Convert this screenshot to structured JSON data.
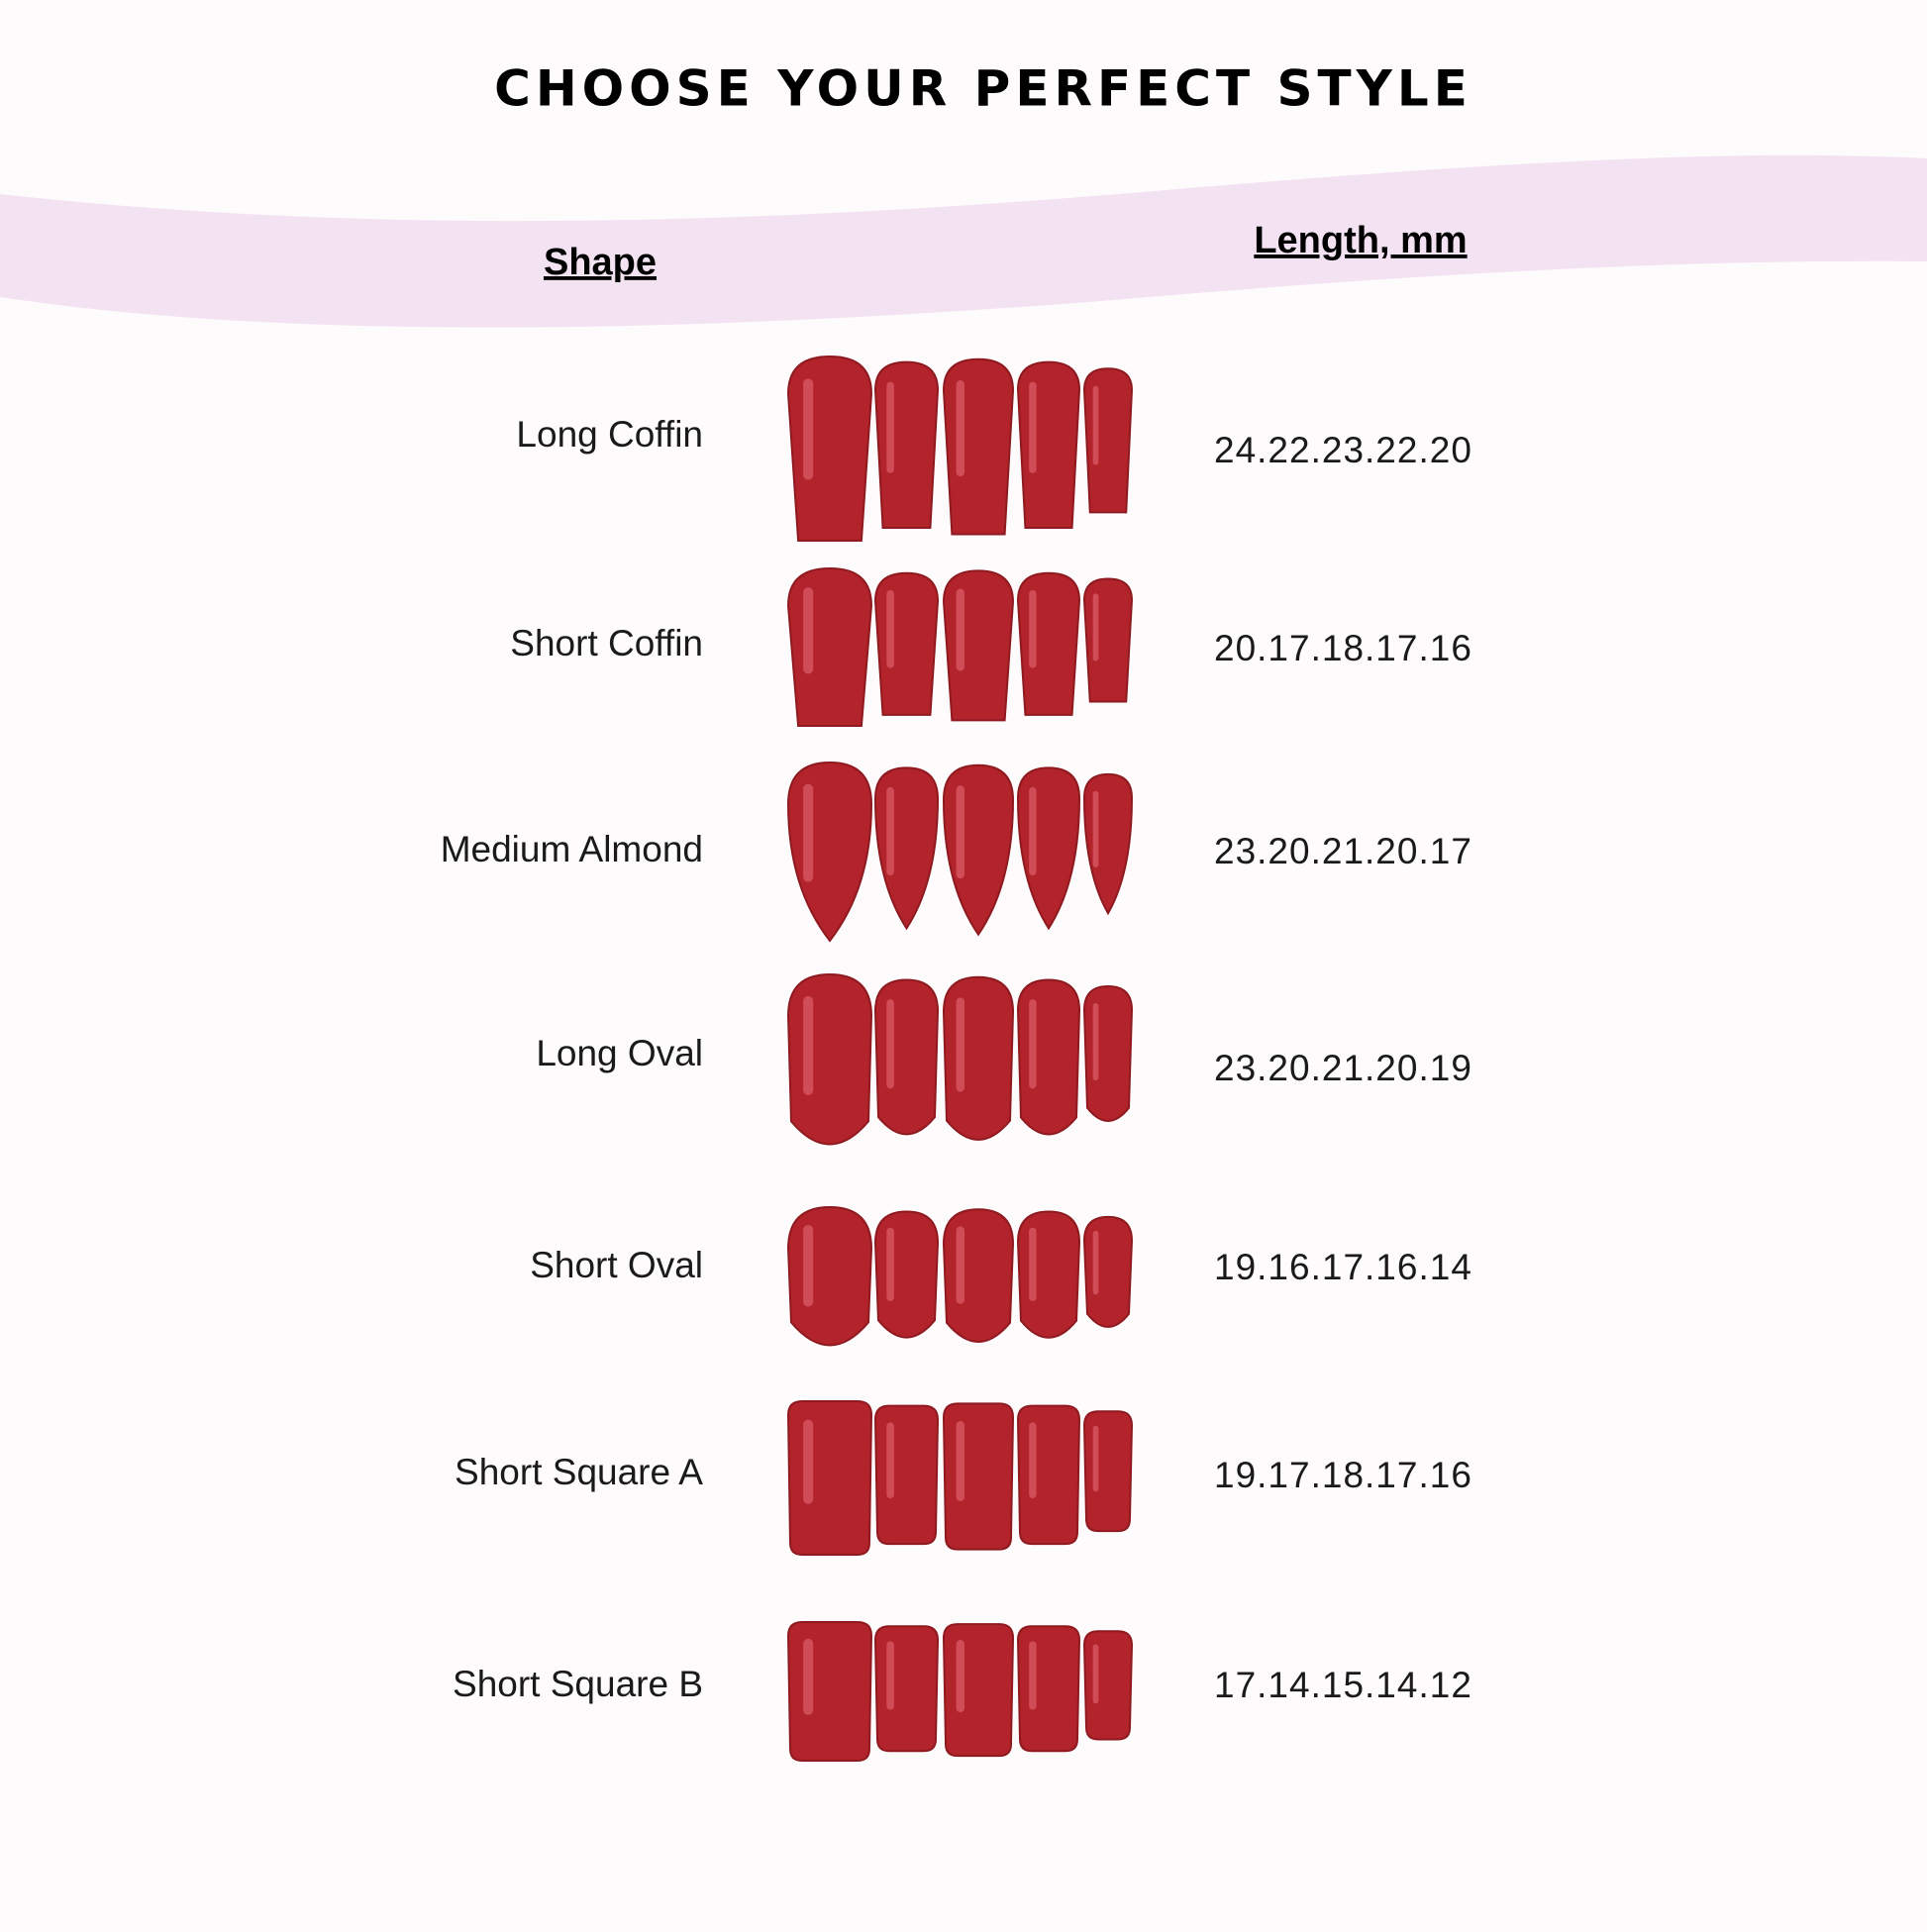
{
  "header": {
    "title": "CHOOSE YOUR PERFECT STYLE"
  },
  "table": {
    "columns": [
      "Shape",
      "Length, mm"
    ],
    "rows": [
      [
        "Long Coffin",
        "24.22.23.22.20"
      ],
      [
        "Short Coffin",
        "20.17.18.17.16"
      ],
      [
        "Medium Almond",
        "23.20.21.20.17"
      ],
      [
        "Long Oval",
        "23.20.21.20.19"
      ],
      [
        "Short Oval",
        "19.16.17.16.14"
      ],
      [
        "Short Square A",
        "19.17.18.17.16"
      ],
      [
        "Short Square B",
        "17.14.15.14.12"
      ]
    ]
  }
}
